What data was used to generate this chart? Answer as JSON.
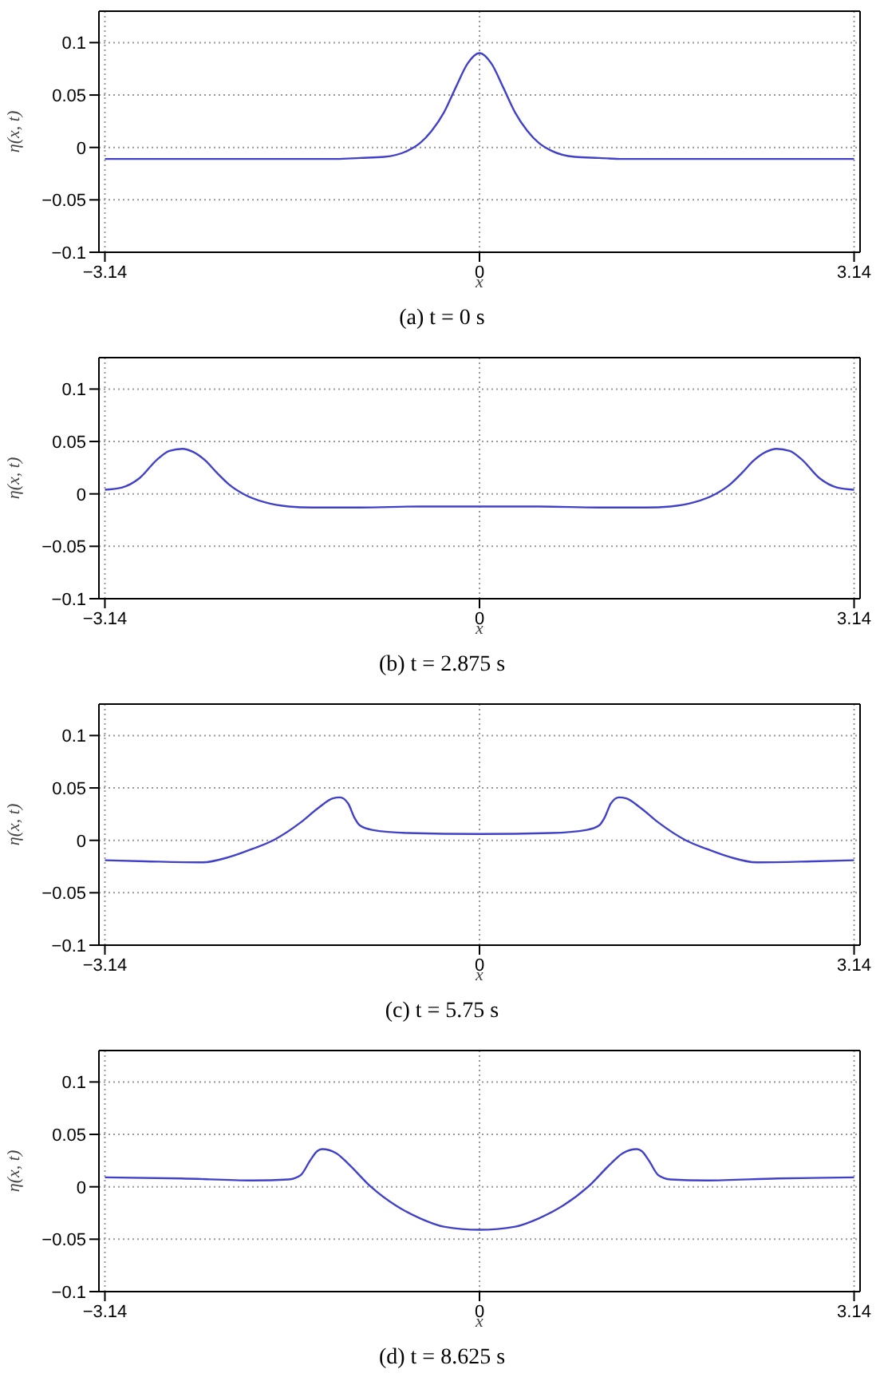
{
  "chart_data": [
    {
      "type": "line",
      "title": "(a) t = 0 s",
      "xlabel": "x",
      "ylabel": "η(x, t)",
      "xlim": [
        -3.19,
        3.19
      ],
      "ylim": [
        -0.1,
        0.13
      ],
      "xticks": [
        -3.14,
        0,
        3.14
      ],
      "yticks": [
        -0.1,
        -0.05,
        0,
        0.05,
        0.1
      ],
      "grid": true,
      "legend": false,
      "marker": "none",
      "line_style": "solid",
      "series": [
        {
          "color": "#4040c8",
          "x": [
            -3.14,
            -2.5,
            -2,
            -1.5,
            -1.2,
            -1,
            -0.8,
            -0.6,
            -0.5,
            -0.4,
            -0.3,
            -0.2,
            -0.1,
            0,
            0.1,
            0.2,
            0.3,
            0.4,
            0.5,
            0.6,
            0.8,
            1,
            1.2,
            1.5,
            2,
            2.5,
            3.14
          ],
          "values": [
            -0.011,
            -0.011,
            -0.011,
            -0.011,
            -0.011,
            -0.01,
            -0.009,
            -0.003,
            0.004,
            0.016,
            0.033,
            0.057,
            0.08,
            0.09,
            0.08,
            0.057,
            0.033,
            0.016,
            0.004,
            -0.003,
            -0.009,
            -0.01,
            -0.011,
            -0.011,
            -0.011,
            -0.011,
            -0.011
          ]
        }
      ]
    },
    {
      "type": "line",
      "title": "(b) t = 2.875 s",
      "xlabel": "x",
      "ylabel": "η(x, t)",
      "xlim": [
        -3.19,
        3.19
      ],
      "ylim": [
        -0.1,
        0.13
      ],
      "xticks": [
        -3.14,
        0,
        3.14
      ],
      "yticks": [
        -0.1,
        -0.05,
        0,
        0.05,
        0.1
      ],
      "grid": true,
      "legend": false,
      "marker": "none",
      "line_style": "solid",
      "series": [
        {
          "color": "#4040c8",
          "x": [
            -3.14,
            -3.0,
            -2.85,
            -2.7,
            -2.6,
            -2.49,
            -2.4,
            -2.3,
            -2.2,
            -2.1,
            -1.98,
            -1.8,
            -1.6,
            -1.4,
            -1.0,
            -0.5,
            0,
            0.5,
            1.0,
            1.4,
            1.6,
            1.8,
            1.98,
            2.1,
            2.2,
            2.3,
            2.4,
            2.49,
            2.6,
            2.7,
            2.85,
            3.0,
            3.14
          ],
          "values": [
            0.004,
            0.006,
            0.015,
            0.033,
            0.041,
            0.043,
            0.04,
            0.032,
            0.02,
            0.009,
            0,
            -0.008,
            -0.012,
            -0.013,
            -0.013,
            -0.012,
            -0.012,
            -0.012,
            -0.013,
            -0.013,
            -0.012,
            -0.008,
            0,
            0.009,
            0.02,
            0.032,
            0.04,
            0.043,
            0.041,
            0.033,
            0.015,
            0.006,
            0.004
          ]
        }
      ]
    },
    {
      "type": "line",
      "title": "(c) t = 5.75 s",
      "xlabel": "x",
      "ylabel": "η(x, t)",
      "xlim": [
        -3.19,
        3.19
      ],
      "ylim": [
        -0.1,
        0.13
      ],
      "xticks": [
        -3.14,
        0,
        3.14
      ],
      "yticks": [
        -0.1,
        -0.05,
        0,
        0.05,
        0.1
      ],
      "grid": true,
      "legend": false,
      "marker": "none",
      "line_style": "solid",
      "series": [
        {
          "color": "#4040c8",
          "x": [
            -3.14,
            -2.8,
            -2.32,
            -2.1,
            -1.9,
            -1.73,
            -1.5,
            -1.35,
            -1.23,
            -1.17,
            -1.1,
            -1.05,
            -1.0,
            -0.9,
            -0.6,
            0,
            0.6,
            0.9,
            1.0,
            1.05,
            1.1,
            1.17,
            1.23,
            1.35,
            1.5,
            1.73,
            1.9,
            2.1,
            2.32,
            2.8,
            3.14
          ],
          "values": [
            -0.019,
            -0.02,
            -0.021,
            -0.016,
            -0.008,
            0,
            0.017,
            0.031,
            0.04,
            0.041,
            0.035,
            0.022,
            0.014,
            0.01,
            0.007,
            0.006,
            0.007,
            0.01,
            0.014,
            0.022,
            0.035,
            0.041,
            0.04,
            0.031,
            0.017,
            0,
            -0.008,
            -0.016,
            -0.021,
            -0.02,
            -0.019
          ]
        }
      ]
    },
    {
      "type": "line",
      "title": "(d) t = 8.625 s",
      "xlabel": "x",
      "ylabel": "η(x, t)",
      "xlim": [
        -3.19,
        3.19
      ],
      "ylim": [
        -0.1,
        0.13
      ],
      "xticks": [
        -3.14,
        0,
        3.14
      ],
      "yticks": [
        -0.1,
        -0.05,
        0,
        0.05,
        0.1
      ],
      "grid": true,
      "legend": false,
      "marker": "none",
      "line_style": "solid",
      "series": [
        {
          "color": "#4040c8",
          "x": [
            -3.14,
            -2.5,
            -1.9,
            -1.6,
            -1.5,
            -1.42,
            -1.36,
            -1.32,
            -1.2,
            -1.1,
            -0.91,
            -0.7,
            -0.5,
            -0.3,
            0,
            0.3,
            0.5,
            0.7,
            0.91,
            1.1,
            1.2,
            1.32,
            1.36,
            1.42,
            1.5,
            1.6,
            1.9,
            2.5,
            3.14
          ],
          "values": [
            0.009,
            0.008,
            0.006,
            0.007,
            0.011,
            0.025,
            0.034,
            0.036,
            0.032,
            0.022,
            0,
            -0.018,
            -0.03,
            -0.038,
            -0.041,
            -0.038,
            -0.03,
            -0.018,
            0,
            0.022,
            0.032,
            0.036,
            0.034,
            0.025,
            0.011,
            0.007,
            0.006,
            0.008,
            0.009
          ]
        }
      ]
    }
  ]
}
